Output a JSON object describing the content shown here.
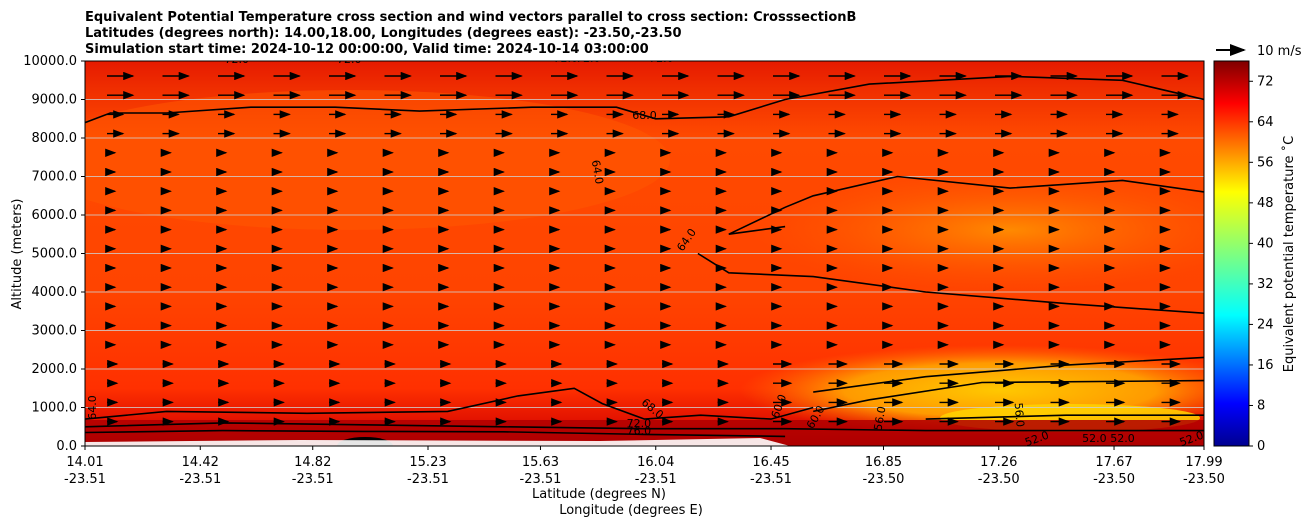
{
  "chart_data": {
    "type": "heatmap",
    "title_lines": [
      "Equivalent Potential Temperature cross section and wind vectors parallel to cross section: CrosssectionB",
      "Latitudes (degrees north): 14.00,18.00, Longitudes (degrees east): -23.50,-23.50",
      "Simulation start time: 2024-10-12 00:00:00, Valid time: 2024-10-14 03:00:00"
    ],
    "xlabel_lines": [
      "Latitude (degrees N)",
      "Longitude (degrees E)"
    ],
    "ylabel": "Altitude (meters)",
    "x_ticks": [
      {
        "lat": "14.01",
        "lon": "-23.51"
      },
      {
        "lat": "14.42",
        "lon": "-23.51"
      },
      {
        "lat": "14.82",
        "lon": "-23.51"
      },
      {
        "lat": "15.23",
        "lon": "-23.51"
      },
      {
        "lat": "15.63",
        "lon": "-23.51"
      },
      {
        "lat": "16.04",
        "lon": "-23.51"
      },
      {
        "lat": "16.45",
        "lon": "-23.51"
      },
      {
        "lat": "16.85",
        "lon": "-23.50"
      },
      {
        "lat": "17.26",
        "lon": "-23.50"
      },
      {
        "lat": "17.67",
        "lon": "-23.50"
      },
      {
        "lat": "17.99",
        "lon": "-23.50"
      }
    ],
    "x_range": [
      14.01,
      17.99
    ],
    "y_ticks": [
      "0.0",
      "1000.0",
      "2000.0",
      "3000.0",
      "4000.0",
      "5000.0",
      "6000.0",
      "7000.0",
      "8000.0",
      "9000.0",
      "10000.0"
    ],
    "ylim": [
      0,
      10000
    ],
    "grid": "horizontal",
    "colorbar": {
      "label": "Equivalent potential temperature ˚C",
      "range": [
        0,
        76
      ],
      "tick_labels": [
        "0",
        "8",
        "16",
        "24",
        "32",
        "40",
        "48",
        "56",
        "64",
        "72"
      ],
      "colormap": "jet"
    },
    "wind_key_label": "10 m/s",
    "contour_labels": [
      "72.0",
      "72.0",
      "72.0",
      "68.0",
      "64.0",
      "64.0",
      "68.0",
      "72.0",
      "76.0",
      "60.0",
      "64.0",
      "60.0",
      "56.0",
      "56.0",
      "52.0",
      "52.0",
      "52.0",
      "52.0",
      "72.0",
      "72.0"
    ],
    "series": [
      {
        "label": "68.0",
        "points": [
          [
            14.01,
            8400
          ],
          [
            14.1,
            8650
          ],
          [
            14.3,
            8650
          ],
          [
            14.6,
            8800
          ],
          [
            14.9,
            8800
          ],
          [
            15.2,
            8700
          ],
          [
            15.6,
            8800
          ],
          [
            15.9,
            8800
          ],
          [
            16.04,
            8500
          ],
          [
            16.3,
            8550
          ],
          [
            16.5,
            9000
          ],
          [
            16.8,
            9400
          ],
          [
            17.3,
            9600
          ],
          [
            17.7,
            9500
          ],
          [
            17.99,
            9000
          ]
        ]
      },
      {
        "label": "64.0",
        "points": [
          [
            16.19,
            5000
          ],
          [
            16.3,
            4500
          ],
          [
            16.6,
            4400
          ],
          [
            17.0,
            4000
          ],
          [
            17.5,
            3700
          ],
          [
            17.99,
            3450
          ]
        ]
      },
      {
        "label": "64.0",
        "points": [
          [
            16.5,
            5700
          ],
          [
            16.3,
            5500
          ],
          [
            16.5,
            6200
          ],
          [
            16.6,
            6500
          ],
          [
            16.9,
            7000
          ],
          [
            17.3,
            6700
          ],
          [
            17.7,
            6900
          ],
          [
            17.99,
            6600
          ]
        ]
      },
      {
        "label": "60.0",
        "points": [
          [
            16.6,
            900
          ],
          [
            16.8,
            1200
          ],
          [
            17.2,
            1650
          ],
          [
            17.99,
            1700
          ]
        ]
      },
      {
        "label": "56.0",
        "points": [
          [
            17.0,
            700
          ],
          [
            17.5,
            800
          ],
          [
            17.99,
            800
          ]
        ]
      },
      {
        "label": "60.0",
        "points": [
          [
            16.6,
            1400
          ],
          [
            17.0,
            1800
          ],
          [
            17.5,
            2100
          ],
          [
            17.99,
            2300
          ]
        ]
      },
      {
        "label": "68.0",
        "points": [
          [
            14.01,
            700
          ],
          [
            14.3,
            900
          ],
          [
            14.8,
            850
          ],
          [
            15.3,
            900
          ],
          [
            15.55,
            1300
          ],
          [
            15.75,
            1500
          ],
          [
            15.85,
            1100
          ],
          [
            16.0,
            700
          ],
          [
            16.2,
            800
          ],
          [
            16.45,
            700
          ],
          [
            16.6,
            1000
          ]
        ]
      },
      {
        "label": "72.0",
        "points": [
          [
            14.01,
            500
          ],
          [
            14.5,
            600
          ],
          [
            15.0,
            550
          ],
          [
            15.5,
            500
          ],
          [
            16.0,
            450
          ],
          [
            16.5,
            450
          ],
          [
            17.0,
            400
          ],
          [
            17.99,
            400
          ]
        ]
      },
      {
        "label": "76.0",
        "points": [
          [
            14.01,
            350
          ],
          [
            14.5,
            400
          ],
          [
            15.0,
            380
          ],
          [
            15.5,
            370
          ],
          [
            16.0,
            300
          ],
          [
            16.5,
            250
          ]
        ]
      }
    ]
  }
}
